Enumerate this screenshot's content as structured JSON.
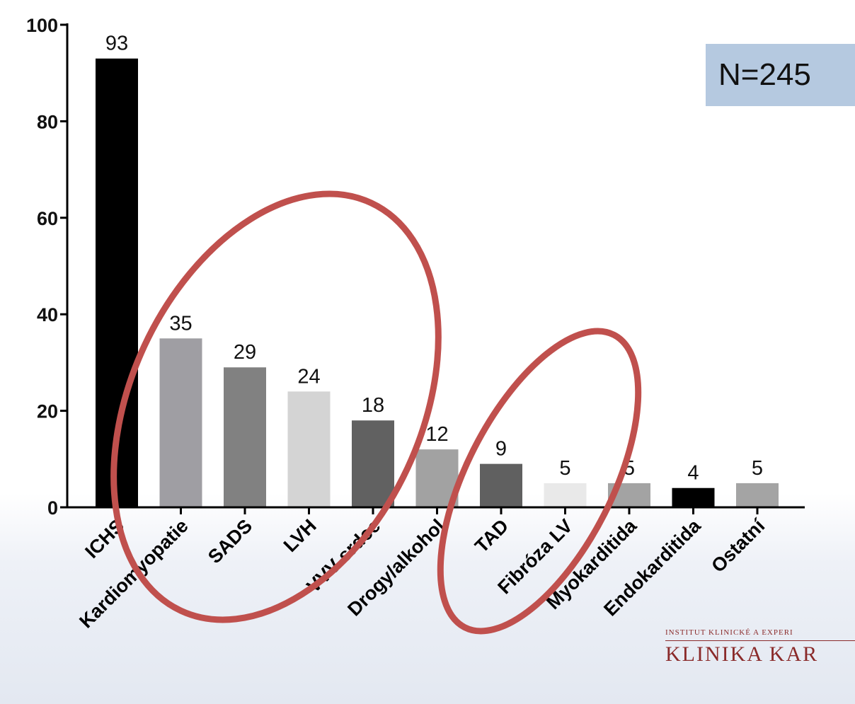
{
  "chart_data": {
    "type": "bar",
    "categories": [
      "ICHS",
      "Kardiomyopatie",
      "SADS",
      "LVH",
      "VVV srdce",
      "Drogy/alkohol",
      "TAD",
      "Fibróza LV",
      "Myokarditida",
      "Endokarditida",
      "Ostatní"
    ],
    "values": [
      93,
      35,
      29,
      24,
      18,
      12,
      9,
      5,
      5,
      4,
      5
    ],
    "bar_colors": [
      "#000000",
      "#9f9ea3",
      "#818181",
      "#d4d4d4",
      "#616161",
      "#a2a2a2",
      "#606060",
      "#e9e9e9",
      "#a3a3a3",
      "#000000",
      "#a4a4a4"
    ],
    "yticks": [
      0,
      20,
      40,
      60,
      80,
      100
    ],
    "ylim": [
      0,
      100
    ],
    "title": "",
    "xlabel": "",
    "ylabel": "",
    "annotation": "N=245",
    "highlight_color": "#c0504d"
  },
  "logo": {
    "top_text": "INSTITUT KLINICKÉ A EXPERI",
    "main_text": "KLINIKA KAR"
  }
}
